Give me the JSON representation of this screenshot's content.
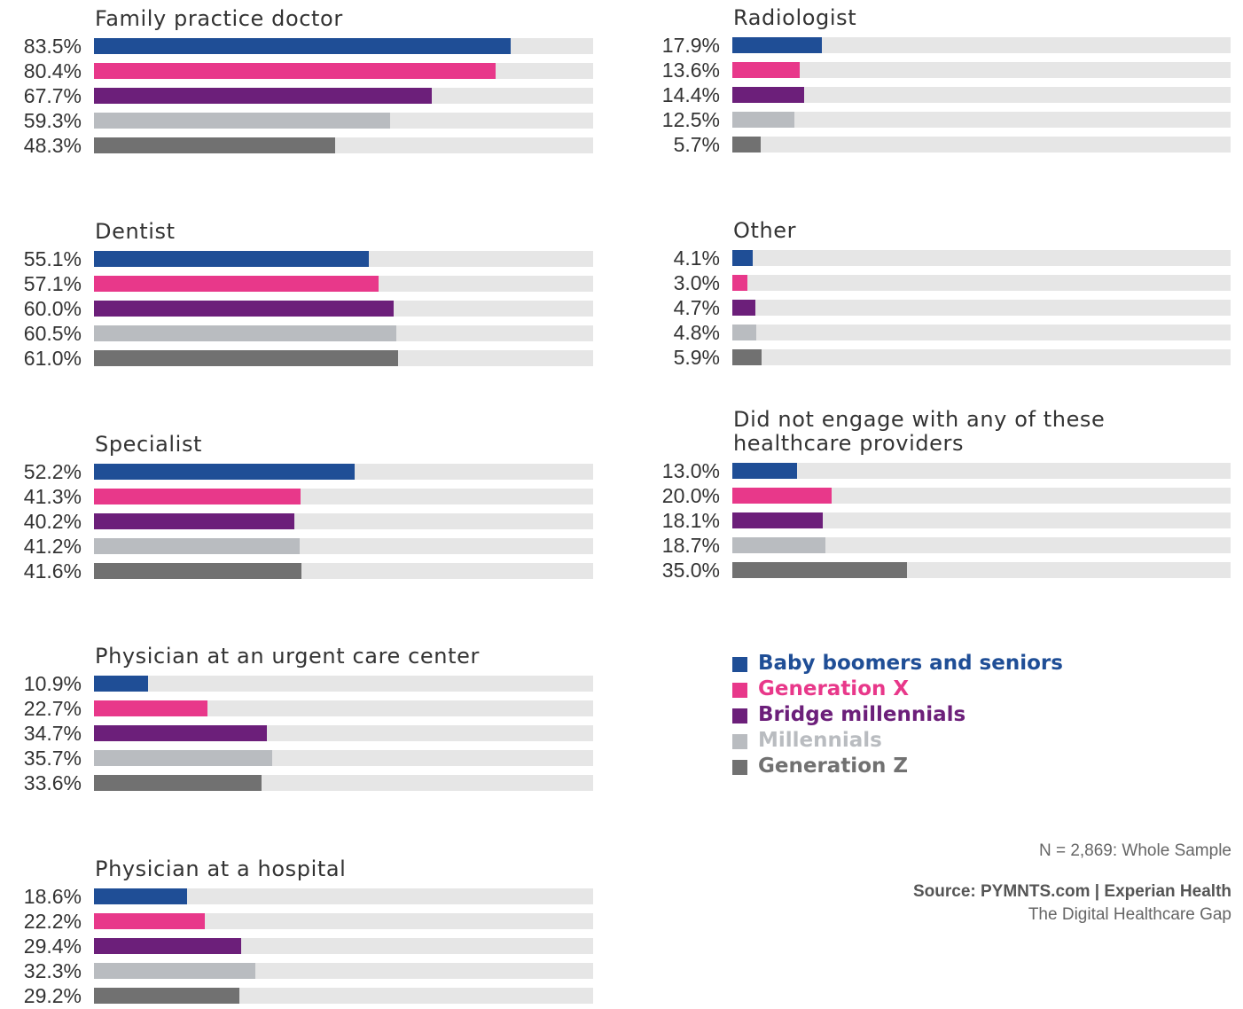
{
  "chart_data": [
    {
      "type": "bar",
      "title": "Family practice doctor",
      "values": [
        83.5,
        80.4,
        67.7,
        59.3,
        48.3
      ],
      "value_labels": [
        "83.5%",
        "80.4%",
        "67.7%",
        "59.3%",
        "48.3%"
      ],
      "xlim": [
        0,
        100
      ]
    },
    {
      "type": "bar",
      "title": "Dentist",
      "values": [
        55.1,
        57.1,
        60.0,
        60.5,
        61.0
      ],
      "value_labels": [
        "55.1%",
        "57.1%",
        "60.0%",
        "60.5%",
        "61.0%"
      ],
      "xlim": [
        0,
        100
      ]
    },
    {
      "type": "bar",
      "title": "Specialist",
      "values": [
        52.2,
        41.3,
        40.2,
        41.2,
        41.6
      ],
      "value_labels": [
        "52.2%",
        "41.3%",
        "40.2%",
        "41.2%",
        "41.6%"
      ],
      "xlim": [
        0,
        100
      ]
    },
    {
      "type": "bar",
      "title": "Physician at an urgent care center",
      "values": [
        10.9,
        22.7,
        34.7,
        35.7,
        33.6
      ],
      "value_labels": [
        "10.9%",
        "22.7%",
        "34.7%",
        "35.7%",
        "33.6%"
      ],
      "xlim": [
        0,
        100
      ]
    },
    {
      "type": "bar",
      "title": "Physician at a hospital",
      "values": [
        18.6,
        22.2,
        29.4,
        32.3,
        29.2
      ],
      "value_labels": [
        "18.6%",
        "22.2%",
        "29.4%",
        "32.3%",
        "29.2%"
      ],
      "xlim": [
        0,
        100
      ]
    },
    {
      "type": "bar",
      "title": "Radiologist",
      "values": [
        17.9,
        13.6,
        14.4,
        12.5,
        5.7
      ],
      "value_labels": [
        "17.9%",
        "13.6%",
        "14.4%",
        "12.5%",
        "5.7%"
      ],
      "xlim": [
        0,
        100
      ]
    },
    {
      "type": "bar",
      "title": "Other",
      "values": [
        4.1,
        3.0,
        4.7,
        4.8,
        5.9
      ],
      "value_labels": [
        "4.1%",
        "3.0%",
        "4.7%",
        "4.8%",
        "5.9%"
      ],
      "xlim": [
        0,
        100
      ]
    },
    {
      "type": "bar",
      "title": "Did not engage with any of these healthcare providers",
      "values": [
        13.0,
        20.0,
        18.1,
        18.7,
        35.0
      ],
      "value_labels": [
        "13.0%",
        "20.0%",
        "18.1%",
        "18.7%",
        "35.0%"
      ],
      "xlim": [
        0,
        100
      ]
    }
  ],
  "legend": [
    {
      "name": "Baby boomers and seniors",
      "color": "#1f4e96"
    },
    {
      "name": "Generation X",
      "color": "#e8388a"
    },
    {
      "name": "Bridge millennials",
      "color": "#6c1f7a"
    },
    {
      "name": "Millennials",
      "color": "#b9bcc0"
    },
    {
      "name": "Generation Z",
      "color": "#717171"
    }
  ],
  "notes": {
    "sample": "N = 2,869: Whole Sample",
    "source": "Source: PYMNTS.com | Experian Health",
    "report": "The Digital Healthcare Gap"
  }
}
